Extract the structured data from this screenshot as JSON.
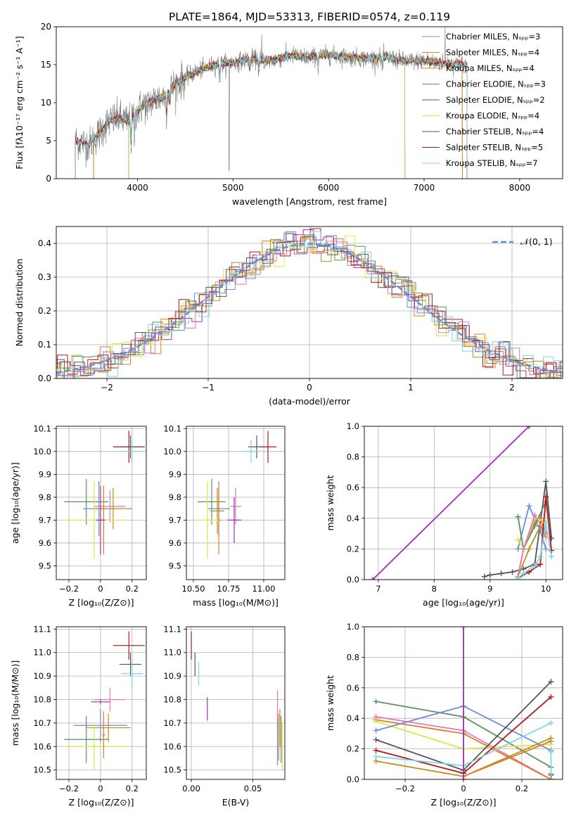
{
  "title": "PLATE=1864, MJD=53313, FIBERID=0574, z=0.119",
  "colors": {
    "Chabrier MILES": "#6a8fd8",
    "Salpeter MILES": "#e07b27",
    "Kroupa MILES": "#b8901a",
    "Chabrier ELODIE": "#5b8f60",
    "Salpeter ELODIE": "#9a32b0",
    "Kroupa ELODIE": "#d9e84a",
    "Chabrier STELIB": "#555555",
    "Salpeter STELIB": "#b01818",
    "Kroupa STELIB": "#7fd6e0",
    "pink": "#e07ab8",
    "gaussian": "#5e8fd8"
  },
  "chart_data": [
    {
      "type": "line",
      "id": "spectrum",
      "xlabel": "wavelength [Angstrom, rest frame]",
      "ylabel": "Flux [fλ10⁻¹⁷ erg cm⁻² s⁻¹ A⁻¹]",
      "xlim": [
        3150,
        8450
      ],
      "ylim": [
        0,
        20
      ],
      "xticks": [
        4000,
        5000,
        6000,
        7000,
        8000
      ],
      "yticks": [
        0,
        5,
        10,
        15,
        20
      ],
      "grid": false,
      "legend_position": "right",
      "legend": [
        "Chabrier MILES, Nₛₚₚ=3",
        "Salpeter MILES, Nₛₚₚ=4",
        "Kroupa MILES, Nₛₚₚ=4",
        "Chabrier ELODIE, Nₛₚₚ=3",
        "Salpeter ELODIE, Nₛₚₚ=2",
        "Kroupa ELODIE, Nₛₚₚ=4",
        "Chabrier STELIB, Nₛₚₚ=4",
        "Salpeter STELIB, Nₛₚₚ=5",
        "Kroupa STELIB, Nₛₚₚ=7"
      ],
      "continuum": {
        "x": [
          3350,
          3500,
          3600,
          3700,
          3800,
          3900,
          4000,
          4100,
          4200,
          4300,
          4400,
          4600,
          4800,
          5000,
          5200,
          5400,
          5600,
          5800,
          6000,
          6200,
          6400,
          6600,
          6800,
          7000,
          7200,
          7400,
          7500
        ],
        "y": [
          5.0,
          4.5,
          6.0,
          7.5,
          8.0,
          7.5,
          9.0,
          10.0,
          10.5,
          11.0,
          12.5,
          14.0,
          15.0,
          15.3,
          15.8,
          15.5,
          16.2,
          16.0,
          16.3,
          16.0,
          15.8,
          16.0,
          15.5,
          15.5,
          15.2,
          15.0,
          15.0
        ]
      }
    },
    {
      "type": "histogram",
      "id": "residuals",
      "xlabel": "(data-model)/error",
      "ylabel": "Normed distribution",
      "xlim": [
        -2.5,
        2.5
      ],
      "ylim": [
        0,
        0.45
      ],
      "xticks": [
        -2,
        -1,
        0,
        1,
        2
      ],
      "yticks": [
        0.0,
        0.1,
        0.2,
        0.3,
        0.4
      ],
      "grid": true,
      "legend": [
        "𝒩(0, 1)"
      ],
      "legend_position": "upper right",
      "gaussian": {
        "mean": 0,
        "sigma": 1
      }
    },
    {
      "type": "scatter",
      "id": "age-vs-Z",
      "xlabel": "Z [log₁₀(Z/Z⊙)]",
      "ylabel": "age  [log₁₀(age/yr)]",
      "xlim": [
        -0.28,
        0.29
      ],
      "ylim": [
        9.44,
        10.11
      ],
      "xticks": [
        -0.2,
        0.0,
        0.2
      ],
      "yticks": [
        9.5,
        9.6,
        9.7,
        9.8,
        9.9,
        10.0,
        10.1
      ],
      "points": [
        {
          "series": "Salpeter STELIB",
          "x": 0.18,
          "y": 10.02,
          "xerr": 0.1,
          "yerr": 0.07
        },
        {
          "series": "Chabrier STELIB",
          "x": 0.19,
          "y": 10.02,
          "xerr": 0.06,
          "yerr": 0.05
        },
        {
          "series": "Kroupa STELIB",
          "x": 0.2,
          "y": 10.0,
          "xerr": 0.08,
          "yerr": 0.05
        },
        {
          "series": "Chabrier ELODIE",
          "x": -0.09,
          "y": 9.78,
          "xerr": 0.14,
          "yerr": 0.1
        },
        {
          "series": "Chabrier MILES",
          "x": -0.01,
          "y": 9.75,
          "xerr": 0.1,
          "yerr": 0.12
        },
        {
          "series": "pink",
          "x": 0.06,
          "y": 9.76,
          "xerr": 0.1,
          "yerr": 0.07
        },
        {
          "series": "Kroupa MILES",
          "x": 0.08,
          "y": 9.75,
          "xerr": 0.12,
          "yerr": 0.09
        },
        {
          "series": "Salpeter MILES",
          "x": 0.02,
          "y": 9.7,
          "xerr": 0.04,
          "yerr": 0.15
        },
        {
          "series": "Kroupa ELODIE",
          "x": -0.04,
          "y": 9.7,
          "xerr": 0.2,
          "yerr": 0.17
        },
        {
          "series": "Salpeter ELODIE",
          "x": 0.0,
          "y": 9.7,
          "xerr": 0.03,
          "yerr": 0.15
        }
      ]
    },
    {
      "type": "scatter",
      "id": "age-vs-mass",
      "xlabel": "mass [log₁₀(M/M⊙)]",
      "ylabel": "",
      "xlim": [
        10.45,
        11.15
      ],
      "ylim": [
        9.44,
        10.11
      ],
      "xticks": [
        10.5,
        10.75,
        11.0
      ],
      "xticklabels": [
        "10.50",
        "10.75",
        "11.00"
      ],
      "yticks": [
        9.5,
        9.6,
        9.7,
        9.8,
        9.9,
        10.0,
        10.1
      ],
      "points": [
        {
          "series": "Salpeter STELIB",
          "x": 11.03,
          "y": 10.02,
          "xerr": 0.06,
          "yerr": 0.07
        },
        {
          "series": "Chabrier STELIB",
          "x": 10.95,
          "y": 10.02,
          "xerr": 0.06,
          "yerr": 0.05
        },
        {
          "series": "Kroupa STELIB",
          "x": 10.91,
          "y": 10.0,
          "xerr": 0.06,
          "yerr": 0.05
        },
        {
          "series": "Chabrier ELODIE",
          "x": 10.63,
          "y": 9.78,
          "xerr": 0.1,
          "yerr": 0.1
        },
        {
          "series": "Chabrier MILES",
          "x": 10.68,
          "y": 9.75,
          "xerr": 0.08,
          "yerr": 0.12
        },
        {
          "series": "pink",
          "x": 10.8,
          "y": 9.76,
          "xerr": 0.04,
          "yerr": 0.08
        },
        {
          "series": "Kroupa MILES",
          "x": 10.67,
          "y": 9.74,
          "xerr": 0.05,
          "yerr": 0.1
        },
        {
          "series": "Salpeter MILES",
          "x": 10.68,
          "y": 9.7,
          "xerr": 0.02,
          "yerr": 0.15
        },
        {
          "series": "Kroupa ELODIE",
          "x": 10.6,
          "y": 9.7,
          "xerr": 0.08,
          "yerr": 0.17
        },
        {
          "series": "Salpeter ELODIE",
          "x": 10.79,
          "y": 9.7,
          "xerr": 0.05,
          "yerr": 0.1
        }
      ]
    },
    {
      "type": "line",
      "id": "massweight-vs-age",
      "xlabel": "age  [log₁₀(age/yr)]",
      "ylabel": "mass weight",
      "xlim": [
        6.75,
        10.3
      ],
      "ylim": [
        0,
        1.0
      ],
      "xticks": [
        7,
        8,
        9,
        10
      ],
      "yticks": [
        0.0,
        0.2,
        0.4,
        0.6,
        0.8,
        1.0
      ],
      "grid": true,
      "series": [
        {
          "series": "Salpeter ELODIE",
          "x": [
            6.9,
            9.7
          ],
          "y": [
            0.0,
            1.0
          ]
        },
        {
          "series": "Chabrier STELIB",
          "x": [
            8.9,
            9.0,
            9.2,
            9.4,
            9.6,
            9.8,
            10.0,
            10.1
          ],
          "y": [
            0.02,
            0.03,
            0.04,
            0.05,
            0.07,
            0.1,
            0.64,
            0.27
          ]
        },
        {
          "series": "Chabrier MILES",
          "x": [
            9.5,
            9.7,
            9.9,
            10.0
          ],
          "y": [
            0.2,
            0.48,
            0.32,
            0.2
          ]
        },
        {
          "series": "Salpeter MILES",
          "x": [
            9.5,
            9.6,
            9.8,
            9.9,
            10.0
          ],
          "y": [
            0.02,
            0.2,
            0.38,
            0.4,
            0.3
          ]
        },
        {
          "series": "Kroupa MILES",
          "x": [
            9.5,
            9.7,
            9.9,
            10.0
          ],
          "y": [
            0.02,
            0.2,
            0.35,
            0.28
          ]
        },
        {
          "series": "Chabrier ELODIE",
          "x": [
            9.5,
            9.6,
            9.8,
            10.0
          ],
          "y": [
            0.41,
            0.2,
            0.35,
            0.51
          ]
        },
        {
          "series": "Kroupa ELODIE",
          "x": [
            9.5,
            9.6,
            9.8,
            10.0
          ],
          "y": [
            0.26,
            0.2,
            0.4,
            0.38
          ]
        },
        {
          "series": "pink",
          "x": [
            9.5,
            9.6,
            9.8,
            10.0
          ],
          "y": [
            0.02,
            0.2,
            0.42,
            0.3
          ]
        },
        {
          "series": "Salpeter STELIB",
          "x": [
            9.5,
            9.7,
            9.9,
            10.0,
            10.1
          ],
          "y": [
            0.01,
            0.05,
            0.1,
            0.54,
            0.19
          ]
        },
        {
          "series": "Kroupa STELIB",
          "x": [
            9.5,
            9.6,
            9.8,
            9.9,
            10.0,
            10.1
          ],
          "y": [
            0.01,
            0.04,
            0.09,
            0.15,
            0.37,
            0.15
          ]
        }
      ]
    },
    {
      "type": "scatter",
      "id": "mass-vs-Z",
      "xlabel": "Z [log₁₀(Z/Z⊙)]",
      "ylabel": "mass [log₁₀(M/M⊙)]",
      "xlim": [
        -0.28,
        0.29
      ],
      "ylim": [
        10.46,
        11.11
      ],
      "xticks": [
        -0.2,
        0.0,
        0.2
      ],
      "yticks": [
        10.5,
        10.6,
        10.7,
        10.8,
        10.9,
        11.0,
        11.1
      ],
      "points": [
        {
          "series": "Salpeter STELIB",
          "x": 0.18,
          "y": 11.03,
          "xerr": 0.1,
          "yerr": 0.06
        },
        {
          "series": "Chabrier STELIB",
          "x": 0.19,
          "y": 10.95,
          "xerr": 0.07,
          "yerr": 0.05
        },
        {
          "series": "Kroupa STELIB",
          "x": 0.2,
          "y": 10.91,
          "xerr": 0.07,
          "yerr": 0.06
        },
        {
          "series": "pink",
          "x": 0.06,
          "y": 10.8,
          "xerr": 0.1,
          "yerr": 0.05
        },
        {
          "series": "Salpeter ELODIE",
          "x": 0.0,
          "y": 10.79,
          "xerr": 0.06,
          "yerr": 0.01
        },
        {
          "series": "Chabrier MILES",
          "x": 0.0,
          "y": 10.69,
          "xerr": 0.17,
          "yerr": 0.07
        },
        {
          "series": "Kroupa MILES",
          "x": 0.05,
          "y": 10.68,
          "xerr": 0.14,
          "yerr": 0.06
        },
        {
          "series": "Chabrier ELODIE",
          "x": -0.09,
          "y": 10.63,
          "xerr": 0.14,
          "yerr": 0.1
        },
        {
          "series": "Kroupa ELODIE",
          "x": -0.04,
          "y": 10.6,
          "xerr": 0.2,
          "yerr": 0.1
        },
        {
          "series": "Salpeter MILES",
          "x": 0.02,
          "y": 10.65,
          "xerr": 0.01,
          "yerr": 0.1
        }
      ]
    },
    {
      "type": "scatter",
      "id": "mass-vs-ebv",
      "xlabel": "E(B-V)",
      "ylabel": "",
      "xlim": [
        -0.004,
        0.076
      ],
      "ylim": [
        10.46,
        11.11
      ],
      "xticks": [
        0.0,
        0.05
      ],
      "xticklabels": [
        "0.00",
        "0.05"
      ],
      "yticks": [
        10.5,
        10.6,
        10.7,
        10.8,
        10.9,
        11.0,
        11.1
      ],
      "points": [
        {
          "series": "Salpeter STELIB",
          "x": 0.0,
          "y": 11.03,
          "xerr": 0,
          "yerr": 0.06
        },
        {
          "series": "Chabrier STELIB",
          "x": 0.003,
          "y": 10.95,
          "xerr": 0,
          "yerr": 0.05
        },
        {
          "series": "Kroupa STELIB",
          "x": 0.006,
          "y": 10.91,
          "xerr": 0,
          "yerr": 0.05
        },
        {
          "series": "Salpeter ELODIE",
          "x": 0.013,
          "y": 10.76,
          "xerr": 0,
          "yerr": 0.05
        },
        {
          "series": "pink",
          "x": 0.07,
          "y": 10.74,
          "xerr": 0,
          "yerr": 0.1
        },
        {
          "series": "Chabrier MILES",
          "x": 0.07,
          "y": 10.62,
          "xerr": 0,
          "yerr": 0.1
        },
        {
          "series": "Salpeter MILES",
          "x": 0.071,
          "y": 10.64,
          "xerr": 0,
          "yerr": 0.1
        },
        {
          "series": "Chabrier ELODIE",
          "x": 0.073,
          "y": 10.63,
          "xerr": 0,
          "yerr": 0.1
        },
        {
          "series": "Kroupa ELODIE",
          "x": 0.074,
          "y": 10.6,
          "xerr": 0,
          "yerr": 0.1
        },
        {
          "series": "Kroupa MILES",
          "x": 0.072,
          "y": 10.68,
          "xerr": 0,
          "yerr": 0.08
        }
      ]
    },
    {
      "type": "line",
      "id": "massweight-vs-Z",
      "xlabel": "Z [log₁₀(Z/Z⊙)]",
      "ylabel": "mass weight",
      "xlim": [
        -0.34,
        0.34
      ],
      "ylim": [
        0,
        1.0
      ],
      "xticks": [
        -0.2,
        0.0,
        0.2
      ],
      "yticks": [
        0.0,
        0.2,
        0.4,
        0.6,
        0.8,
        1.0
      ],
      "grid": true,
      "series": [
        {
          "series": "Chabrier ELODIE",
          "x": [
            -0.3,
            0.0,
            0.3
          ],
          "y": [
            0.51,
            0.41,
            0.08
          ]
        },
        {
          "series": "pink",
          "x": [
            -0.3,
            0.0,
            0.3
          ],
          "y": [
            0.41,
            0.32,
            0.0
          ]
        },
        {
          "series": "Salpeter MILES",
          "x": [
            -0.3,
            0.0,
            0.3
          ],
          "y": [
            0.39,
            0.3,
            0.0
          ]
        },
        {
          "series": "Kroupa ELODIE",
          "x": [
            -0.3,
            0.0,
            0.3
          ],
          "y": [
            0.38,
            0.2,
            0.23
          ]
        },
        {
          "series": "Chabrier MILES",
          "x": [
            -0.3,
            0.0,
            0.3
          ],
          "y": [
            0.32,
            0.48,
            0.19
          ]
        },
        {
          "series": "Chabrier STELIB",
          "x": [
            -0.3,
            0.0,
            0.3
          ],
          "y": [
            0.26,
            0.06,
            0.64
          ]
        },
        {
          "series": "Salpeter STELIB",
          "x": [
            -0.3,
            0.0,
            0.3
          ],
          "y": [
            0.19,
            0.04,
            0.54
          ]
        },
        {
          "series": "Kroupa STELIB",
          "x": [
            -0.3,
            0.0,
            0.3
          ],
          "y": [
            0.15,
            0.09,
            0.37
          ]
        },
        {
          "series": "Kroupa MILES",
          "x": [
            -0.3,
            0.0,
            0.3
          ],
          "y": [
            0.12,
            0.02,
            0.27
          ]
        },
        {
          "series": "Salpeter MILES",
          "x": [
            0.0,
            0.3
          ],
          "y": [
            0.02,
            0.25
          ]
        },
        {
          "series": "Salpeter ELODIE",
          "x": [
            0.0,
            0.0
          ],
          "y": [
            0.0,
            1.0
          ]
        },
        {
          "series": "Chabrier STELIB",
          "x": [
            0.3,
            0.3
          ],
          "y": [
            0.03,
            0.03
          ]
        },
        {
          "series": "Kroupa STELIB",
          "x": [
            0.3,
            0.3
          ],
          "y": [
            0.04,
            0.18
          ]
        }
      ]
    }
  ]
}
